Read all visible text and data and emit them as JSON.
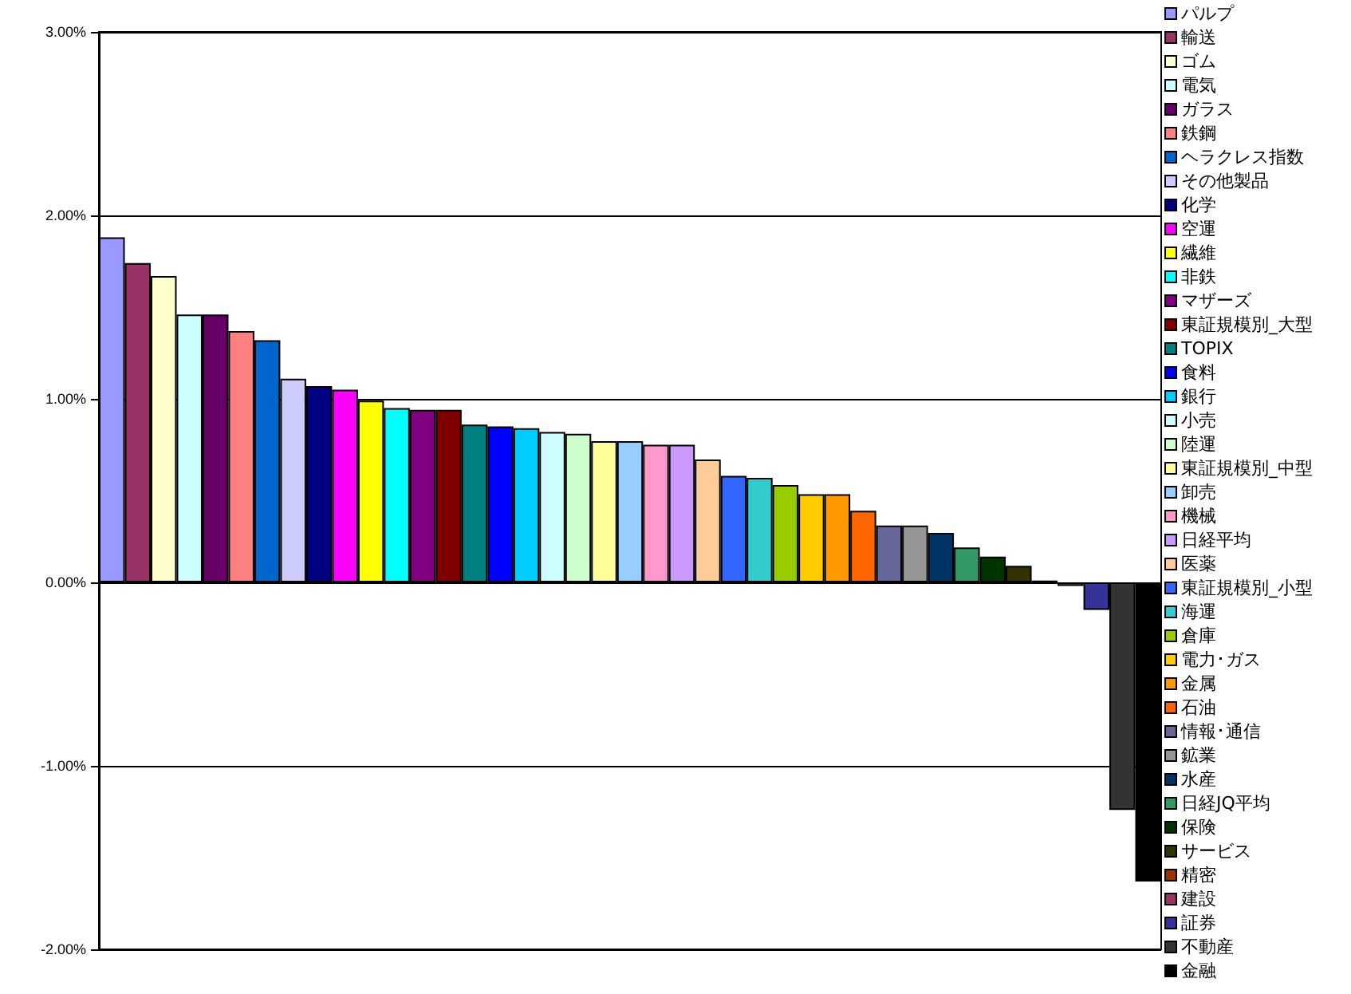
{
  "chart_data": {
    "type": "bar",
    "categories": [
      null,
      null,
      null,
      null,
      null,
      null,
      null,
      null,
      null,
      null,
      null,
      null,
      null,
      null,
      null,
      null,
      null,
      null,
      null,
      null,
      null,
      null,
      null,
      null,
      null,
      null,
      null,
      null,
      null,
      null,
      null,
      null,
      null,
      null,
      null,
      null,
      null,
      null,
      null,
      null,
      null
    ],
    "series": [
      {
        "name": "パルプ",
        "color": "#9999ff",
        "values": [
          1.88,
          null,
          null,
          null,
          null,
          null,
          null,
          null,
          null,
          null,
          null,
          null,
          null,
          null,
          null,
          null,
          null,
          null,
          null,
          null,
          null,
          null,
          null,
          null,
          null,
          null,
          null,
          null,
          null,
          null,
          null,
          null,
          null,
          null,
          null,
          null,
          null,
          null,
          null,
          null,
          null
        ]
      },
      {
        "name": "輸送",
        "color": "#993366",
        "values": [
          null,
          1.74,
          null,
          null,
          null,
          null,
          null,
          null,
          null,
          null,
          null,
          null,
          null,
          null,
          null,
          null,
          null,
          null,
          null,
          null,
          null,
          null,
          null,
          null,
          null,
          null,
          null,
          null,
          null,
          null,
          null,
          null,
          null,
          null,
          null,
          null,
          null,
          null,
          null,
          null,
          null
        ]
      },
      {
        "name": "ゴム",
        "color": "#ffffcc",
        "values": [
          null,
          null,
          1.67,
          null,
          null,
          null,
          null,
          null,
          null,
          null,
          null,
          null,
          null,
          null,
          null,
          null,
          null,
          null,
          null,
          null,
          null,
          null,
          null,
          null,
          null,
          null,
          null,
          null,
          null,
          null,
          null,
          null,
          null,
          null,
          null,
          null,
          null,
          null,
          null,
          null,
          null
        ]
      },
      {
        "name": "電気",
        "color": "#ccffff",
        "values": [
          null,
          null,
          null,
          1.46,
          null,
          null,
          null,
          null,
          null,
          null,
          null,
          null,
          null,
          null,
          null,
          null,
          null,
          null,
          null,
          null,
          null,
          null,
          null,
          null,
          null,
          null,
          null,
          null,
          null,
          null,
          null,
          null,
          null,
          null,
          null,
          null,
          null,
          null,
          null,
          null,
          null
        ]
      },
      {
        "name": "ガラス",
        "color": "#660066",
        "values": [
          null,
          null,
          null,
          null,
          1.46,
          null,
          null,
          null,
          null,
          null,
          null,
          null,
          null,
          null,
          null,
          null,
          null,
          null,
          null,
          null,
          null,
          null,
          null,
          null,
          null,
          null,
          null,
          null,
          null,
          null,
          null,
          null,
          null,
          null,
          null,
          null,
          null,
          null,
          null,
          null,
          null
        ]
      },
      {
        "name": "鉄鋼",
        "color": "#ff8080",
        "values": [
          null,
          null,
          null,
          null,
          null,
          1.37,
          null,
          null,
          null,
          null,
          null,
          null,
          null,
          null,
          null,
          null,
          null,
          null,
          null,
          null,
          null,
          null,
          null,
          null,
          null,
          null,
          null,
          null,
          null,
          null,
          null,
          null,
          null,
          null,
          null,
          null,
          null,
          null,
          null,
          null,
          null
        ]
      },
      {
        "name": "ヘラクレス指数",
        "color": "#0066cc",
        "values": [
          null,
          null,
          null,
          null,
          null,
          null,
          1.32,
          null,
          null,
          null,
          null,
          null,
          null,
          null,
          null,
          null,
          null,
          null,
          null,
          null,
          null,
          null,
          null,
          null,
          null,
          null,
          null,
          null,
          null,
          null,
          null,
          null,
          null,
          null,
          null,
          null,
          null,
          null,
          null,
          null,
          null
        ]
      },
      {
        "name": "その他製品",
        "color": "#ccccff",
        "values": [
          null,
          null,
          null,
          null,
          null,
          null,
          null,
          1.11,
          null,
          null,
          null,
          null,
          null,
          null,
          null,
          null,
          null,
          null,
          null,
          null,
          null,
          null,
          null,
          null,
          null,
          null,
          null,
          null,
          null,
          null,
          null,
          null,
          null,
          null,
          null,
          null,
          null,
          null,
          null,
          null,
          null
        ]
      },
      {
        "name": "化学",
        "color": "#000080",
        "values": [
          null,
          null,
          null,
          null,
          null,
          null,
          null,
          null,
          1.07,
          null,
          null,
          null,
          null,
          null,
          null,
          null,
          null,
          null,
          null,
          null,
          null,
          null,
          null,
          null,
          null,
          null,
          null,
          null,
          null,
          null,
          null,
          null,
          null,
          null,
          null,
          null,
          null,
          null,
          null,
          null,
          null
        ]
      },
      {
        "name": "空運",
        "color": "#ff00ff",
        "values": [
          null,
          null,
          null,
          null,
          null,
          null,
          null,
          null,
          null,
          1.05,
          null,
          null,
          null,
          null,
          null,
          null,
          null,
          null,
          null,
          null,
          null,
          null,
          null,
          null,
          null,
          null,
          null,
          null,
          null,
          null,
          null,
          null,
          null,
          null,
          null,
          null,
          null,
          null,
          null,
          null,
          null
        ]
      },
      {
        "name": "繊維",
        "color": "#ffff00",
        "values": [
          null,
          null,
          null,
          null,
          null,
          null,
          null,
          null,
          null,
          null,
          0.99,
          null,
          null,
          null,
          null,
          null,
          null,
          null,
          null,
          null,
          null,
          null,
          null,
          null,
          null,
          null,
          null,
          null,
          null,
          null,
          null,
          null,
          null,
          null,
          null,
          null,
          null,
          null,
          null,
          null,
          null
        ]
      },
      {
        "name": "非鉄",
        "color": "#00ffff",
        "values": [
          null,
          null,
          null,
          null,
          null,
          null,
          null,
          null,
          null,
          null,
          null,
          0.95,
          null,
          null,
          null,
          null,
          null,
          null,
          null,
          null,
          null,
          null,
          null,
          null,
          null,
          null,
          null,
          null,
          null,
          null,
          null,
          null,
          null,
          null,
          null,
          null,
          null,
          null,
          null,
          null,
          null
        ]
      },
      {
        "name": "マザーズ",
        "color": "#800080",
        "values": [
          null,
          null,
          null,
          null,
          null,
          null,
          null,
          null,
          null,
          null,
          null,
          null,
          0.94,
          null,
          null,
          null,
          null,
          null,
          null,
          null,
          null,
          null,
          null,
          null,
          null,
          null,
          null,
          null,
          null,
          null,
          null,
          null,
          null,
          null,
          null,
          null,
          null,
          null,
          null,
          null,
          null
        ]
      },
      {
        "name": "東証規模別_大型",
        "color": "#800000",
        "values": [
          null,
          null,
          null,
          null,
          null,
          null,
          null,
          null,
          null,
          null,
          null,
          null,
          null,
          0.94,
          null,
          null,
          null,
          null,
          null,
          null,
          null,
          null,
          null,
          null,
          null,
          null,
          null,
          null,
          null,
          null,
          null,
          null,
          null,
          null,
          null,
          null,
          null,
          null,
          null,
          null,
          null
        ]
      },
      {
        "name": "TOPIX",
        "color": "#008080",
        "values": [
          null,
          null,
          null,
          null,
          null,
          null,
          null,
          null,
          null,
          null,
          null,
          null,
          null,
          null,
          0.86,
          null,
          null,
          null,
          null,
          null,
          null,
          null,
          null,
          null,
          null,
          null,
          null,
          null,
          null,
          null,
          null,
          null,
          null,
          null,
          null,
          null,
          null,
          null,
          null,
          null,
          null
        ]
      },
      {
        "name": "食料",
        "color": "#0000ff",
        "values": [
          null,
          null,
          null,
          null,
          null,
          null,
          null,
          null,
          null,
          null,
          null,
          null,
          null,
          null,
          null,
          0.85,
          null,
          null,
          null,
          null,
          null,
          null,
          null,
          null,
          null,
          null,
          null,
          null,
          null,
          null,
          null,
          null,
          null,
          null,
          null,
          null,
          null,
          null,
          null,
          null,
          null
        ]
      },
      {
        "name": "銀行",
        "color": "#00ccff",
        "values": [
          null,
          null,
          null,
          null,
          null,
          null,
          null,
          null,
          null,
          null,
          null,
          null,
          null,
          null,
          null,
          null,
          0.84,
          null,
          null,
          null,
          null,
          null,
          null,
          null,
          null,
          null,
          null,
          null,
          null,
          null,
          null,
          null,
          null,
          null,
          null,
          null,
          null,
          null,
          null,
          null,
          null
        ]
      },
      {
        "name": "小売",
        "color": "#ccfffe",
        "values": [
          null,
          null,
          null,
          null,
          null,
          null,
          null,
          null,
          null,
          null,
          null,
          null,
          null,
          null,
          null,
          null,
          null,
          0.82,
          null,
          null,
          null,
          null,
          null,
          null,
          null,
          null,
          null,
          null,
          null,
          null,
          null,
          null,
          null,
          null,
          null,
          null,
          null,
          null,
          null,
          null,
          null
        ]
      },
      {
        "name": "陸運",
        "color": "#ccffcc",
        "values": [
          null,
          null,
          null,
          null,
          null,
          null,
          null,
          null,
          null,
          null,
          null,
          null,
          null,
          null,
          null,
          null,
          null,
          null,
          0.81,
          null,
          null,
          null,
          null,
          null,
          null,
          null,
          null,
          null,
          null,
          null,
          null,
          null,
          null,
          null,
          null,
          null,
          null,
          null,
          null,
          null,
          null
        ]
      },
      {
        "name": "東証規模別_中型",
        "color": "#ffff99",
        "values": [
          null,
          null,
          null,
          null,
          null,
          null,
          null,
          null,
          null,
          null,
          null,
          null,
          null,
          null,
          null,
          null,
          null,
          null,
          null,
          0.77,
          null,
          null,
          null,
          null,
          null,
          null,
          null,
          null,
          null,
          null,
          null,
          null,
          null,
          null,
          null,
          null,
          null,
          null,
          null,
          null,
          null
        ]
      },
      {
        "name": "卸売",
        "color": "#99ccff",
        "values": [
          null,
          null,
          null,
          null,
          null,
          null,
          null,
          null,
          null,
          null,
          null,
          null,
          null,
          null,
          null,
          null,
          null,
          null,
          null,
          null,
          0.77,
          null,
          null,
          null,
          null,
          null,
          null,
          null,
          null,
          null,
          null,
          null,
          null,
          null,
          null,
          null,
          null,
          null,
          null,
          null,
          null
        ]
      },
      {
        "name": "機械",
        "color": "#ff99cc",
        "values": [
          null,
          null,
          null,
          null,
          null,
          null,
          null,
          null,
          null,
          null,
          null,
          null,
          null,
          null,
          null,
          null,
          null,
          null,
          null,
          null,
          null,
          0.75,
          null,
          null,
          null,
          null,
          null,
          null,
          null,
          null,
          null,
          null,
          null,
          null,
          null,
          null,
          null,
          null,
          null,
          null,
          null
        ]
      },
      {
        "name": "日経平均",
        "color": "#cc99ff",
        "values": [
          null,
          null,
          null,
          null,
          null,
          null,
          null,
          null,
          null,
          null,
          null,
          null,
          null,
          null,
          null,
          null,
          null,
          null,
          null,
          null,
          null,
          null,
          0.75,
          null,
          null,
          null,
          null,
          null,
          null,
          null,
          null,
          null,
          null,
          null,
          null,
          null,
          null,
          null,
          null,
          null,
          null
        ]
      },
      {
        "name": "医薬",
        "color": "#ffcc99",
        "values": [
          null,
          null,
          null,
          null,
          null,
          null,
          null,
          null,
          null,
          null,
          null,
          null,
          null,
          null,
          null,
          null,
          null,
          null,
          null,
          null,
          null,
          null,
          null,
          0.67,
          null,
          null,
          null,
          null,
          null,
          null,
          null,
          null,
          null,
          null,
          null,
          null,
          null,
          null,
          null,
          null,
          null
        ]
      },
      {
        "name": "東証規模別_小型",
        "color": "#3366ff",
        "values": [
          null,
          null,
          null,
          null,
          null,
          null,
          null,
          null,
          null,
          null,
          null,
          null,
          null,
          null,
          null,
          null,
          null,
          null,
          null,
          null,
          null,
          null,
          null,
          null,
          0.58,
          null,
          null,
          null,
          null,
          null,
          null,
          null,
          null,
          null,
          null,
          null,
          null,
          null,
          null,
          null,
          null
        ]
      },
      {
        "name": "海運",
        "color": "#33cccc",
        "values": [
          null,
          null,
          null,
          null,
          null,
          null,
          null,
          null,
          null,
          null,
          null,
          null,
          null,
          null,
          null,
          null,
          null,
          null,
          null,
          null,
          null,
          null,
          null,
          null,
          null,
          0.57,
          null,
          null,
          null,
          null,
          null,
          null,
          null,
          null,
          null,
          null,
          null,
          null,
          null,
          null,
          null
        ]
      },
      {
        "name": "倉庫",
        "color": "#99cc00",
        "values": [
          null,
          null,
          null,
          null,
          null,
          null,
          null,
          null,
          null,
          null,
          null,
          null,
          null,
          null,
          null,
          null,
          null,
          null,
          null,
          null,
          null,
          null,
          null,
          null,
          null,
          null,
          0.53,
          null,
          null,
          null,
          null,
          null,
          null,
          null,
          null,
          null,
          null,
          null,
          null,
          null,
          null
        ]
      },
      {
        "name": "電力･ガス",
        "color": "#ffcc00",
        "values": [
          null,
          null,
          null,
          null,
          null,
          null,
          null,
          null,
          null,
          null,
          null,
          null,
          null,
          null,
          null,
          null,
          null,
          null,
          null,
          null,
          null,
          null,
          null,
          null,
          null,
          null,
          null,
          0.48,
          null,
          null,
          null,
          null,
          null,
          null,
          null,
          null,
          null,
          null,
          null,
          null,
          null
        ]
      },
      {
        "name": "金属",
        "color": "#ff9900",
        "values": [
          null,
          null,
          null,
          null,
          null,
          null,
          null,
          null,
          null,
          null,
          null,
          null,
          null,
          null,
          null,
          null,
          null,
          null,
          null,
          null,
          null,
          null,
          null,
          null,
          null,
          null,
          null,
          null,
          0.48,
          null,
          null,
          null,
          null,
          null,
          null,
          null,
          null,
          null,
          null,
          null,
          null
        ]
      },
      {
        "name": "石油",
        "color": "#ff6600",
        "values": [
          null,
          null,
          null,
          null,
          null,
          null,
          null,
          null,
          null,
          null,
          null,
          null,
          null,
          null,
          null,
          null,
          null,
          null,
          null,
          null,
          null,
          null,
          null,
          null,
          null,
          null,
          null,
          null,
          null,
          0.39,
          null,
          null,
          null,
          null,
          null,
          null,
          null,
          null,
          null,
          null,
          null
        ]
      },
      {
        "name": "情報･通信",
        "color": "#666699",
        "values": [
          null,
          null,
          null,
          null,
          null,
          null,
          null,
          null,
          null,
          null,
          null,
          null,
          null,
          null,
          null,
          null,
          null,
          null,
          null,
          null,
          null,
          null,
          null,
          null,
          null,
          null,
          null,
          null,
          null,
          null,
          0.31,
          null,
          null,
          null,
          null,
          null,
          null,
          null,
          null,
          null,
          null
        ]
      },
      {
        "name": "鉱業",
        "color": "#969696",
        "values": [
          null,
          null,
          null,
          null,
          null,
          null,
          null,
          null,
          null,
          null,
          null,
          null,
          null,
          null,
          null,
          null,
          null,
          null,
          null,
          null,
          null,
          null,
          null,
          null,
          null,
          null,
          null,
          null,
          null,
          null,
          null,
          0.31,
          null,
          null,
          null,
          null,
          null,
          null,
          null,
          null,
          null
        ]
      },
      {
        "name": "水産",
        "color": "#003366",
        "values": [
          null,
          null,
          null,
          null,
          null,
          null,
          null,
          null,
          null,
          null,
          null,
          null,
          null,
          null,
          null,
          null,
          null,
          null,
          null,
          null,
          null,
          null,
          null,
          null,
          null,
          null,
          null,
          null,
          null,
          null,
          null,
          null,
          0.27,
          null,
          null,
          null,
          null,
          null,
          null,
          null,
          null
        ]
      },
      {
        "name": "日経JQ平均",
        "color": "#339966",
        "values": [
          null,
          null,
          null,
          null,
          null,
          null,
          null,
          null,
          null,
          null,
          null,
          null,
          null,
          null,
          null,
          null,
          null,
          null,
          null,
          null,
          null,
          null,
          null,
          null,
          null,
          null,
          null,
          null,
          null,
          null,
          null,
          null,
          null,
          0.19,
          null,
          null,
          null,
          null,
          null,
          null,
          null
        ]
      },
      {
        "name": "保険",
        "color": "#003300",
        "values": [
          null,
          null,
          null,
          null,
          null,
          null,
          null,
          null,
          null,
          null,
          null,
          null,
          null,
          null,
          null,
          null,
          null,
          null,
          null,
          null,
          null,
          null,
          null,
          null,
          null,
          null,
          null,
          null,
          null,
          null,
          null,
          null,
          null,
          null,
          0.14,
          null,
          null,
          null,
          null,
          null,
          null
        ]
      },
      {
        "name": "サービス",
        "color": "#333300",
        "values": [
          null,
          null,
          null,
          null,
          null,
          null,
          null,
          null,
          null,
          null,
          null,
          null,
          null,
          null,
          null,
          null,
          null,
          null,
          null,
          null,
          null,
          null,
          null,
          null,
          null,
          null,
          null,
          null,
          null,
          null,
          null,
          null,
          null,
          null,
          null,
          0.09,
          null,
          null,
          null,
          null,
          null
        ]
      },
      {
        "name": "精密",
        "color": "#993300",
        "values": [
          null,
          null,
          null,
          null,
          null,
          null,
          null,
          null,
          null,
          null,
          null,
          null,
          null,
          null,
          null,
          null,
          null,
          null,
          null,
          null,
          null,
          null,
          null,
          null,
          null,
          null,
          null,
          null,
          null,
          null,
          null,
          null,
          null,
          null,
          null,
          null,
          0.01,
          null,
          null,
          null,
          null
        ]
      },
      {
        "name": "建設",
        "color": "#993365",
        "values": [
          null,
          null,
          null,
          null,
          null,
          null,
          null,
          null,
          null,
          null,
          null,
          null,
          null,
          null,
          null,
          null,
          null,
          null,
          null,
          null,
          null,
          null,
          null,
          null,
          null,
          null,
          null,
          null,
          null,
          null,
          null,
          null,
          null,
          null,
          null,
          null,
          null,
          -0.02,
          null,
          null,
          null
        ]
      },
      {
        "name": "証券",
        "color": "#333399",
        "values": [
          null,
          null,
          null,
          null,
          null,
          null,
          null,
          null,
          null,
          null,
          null,
          null,
          null,
          null,
          null,
          null,
          null,
          null,
          null,
          null,
          null,
          null,
          null,
          null,
          null,
          null,
          null,
          null,
          null,
          null,
          null,
          null,
          null,
          null,
          null,
          null,
          null,
          null,
          -0.15,
          null,
          null
        ]
      },
      {
        "name": "不動産",
        "color": "#333333",
        "values": [
          null,
          null,
          null,
          null,
          null,
          null,
          null,
          null,
          null,
          null,
          null,
          null,
          null,
          null,
          null,
          null,
          null,
          null,
          null,
          null,
          null,
          null,
          null,
          null,
          null,
          null,
          null,
          null,
          null,
          null,
          null,
          null,
          null,
          null,
          null,
          null,
          null,
          null,
          null,
          -1.24,
          null
        ]
      },
      {
        "name": "金融",
        "color": "#000000",
        "values": [
          null,
          null,
          null,
          null,
          null,
          null,
          null,
          null,
          null,
          null,
          null,
          null,
          null,
          null,
          null,
          null,
          null,
          null,
          null,
          null,
          null,
          null,
          null,
          null,
          null,
          null,
          null,
          null,
          null,
          null,
          null,
          null,
          null,
          null,
          null,
          null,
          null,
          null,
          null,
          null,
          -1.63
        ]
      }
    ],
    "ylim": [
      -2,
      3
    ],
    "yticks": [
      {
        "value": -2,
        "label": "-2.00%"
      },
      {
        "value": -1,
        "label": "-1.00%"
      },
      {
        "value": 0,
        "label": "0.00%"
      },
      {
        "value": 1,
        "label": "1.00%"
      },
      {
        "value": 2,
        "label": "2.00%"
      },
      {
        "value": 3,
        "label": "3.00%"
      }
    ],
    "grid": "y",
    "legend": "right",
    "tick_labels": "y"
  }
}
